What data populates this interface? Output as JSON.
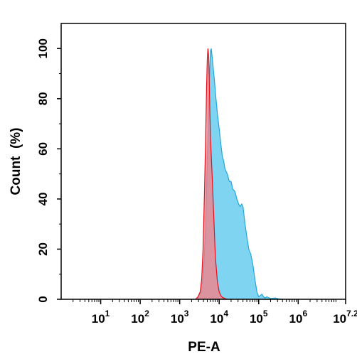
{
  "chart_data": {
    "type": "area",
    "xlabel": "PE-A",
    "ylabel": "Count  (%)",
    "x_scale": "log",
    "xlim": [
      1,
      15848932
    ],
    "ylim": [
      0,
      110
    ],
    "x_ticks": [
      {
        "base": "10",
        "exp": "1",
        "value": 10
      },
      {
        "base": "10",
        "exp": "2",
        "value": 100
      },
      {
        "base": "10",
        "exp": "3",
        "value": 1000
      },
      {
        "base": "10",
        "exp": "4",
        "value": 10000
      },
      {
        "base": "10",
        "exp": "5",
        "value": 100000
      },
      {
        "base": "10",
        "exp": "6",
        "value": 1000000
      },
      {
        "base": "10",
        "exp": "7.2",
        "value": 15848932
      }
    ],
    "y_ticks": [
      0,
      20,
      40,
      60,
      80,
      100
    ],
    "grid": false,
    "legend": "none",
    "series": [
      {
        "color_fill": "#7fd4f2",
        "color_line": "#22a7dc",
        "x": [
          2600,
          3000,
          3500,
          4000,
          4500,
          5000,
          5500,
          6000,
          6300,
          6600,
          7000,
          7600,
          8300,
          9000,
          10000,
          11000,
          12000,
          13000,
          14000,
          16000,
          18000,
          20000,
          22000,
          25000,
          28000,
          31000,
          34000,
          37000,
          40000,
          45000,
          50000,
          56000,
          63000,
          71000,
          80000,
          90000,
          100000,
          120000,
          140000,
          160000,
          200000,
          260000,
          320000,
          400000
        ],
        "y": [
          0,
          1,
          3,
          10,
          28,
          55,
          82,
          99,
          100,
          97,
          93,
          87,
          80,
          74,
          68,
          62,
          57,
          55,
          52,
          50,
          47,
          47,
          44,
          43,
          40,
          38,
          37,
          38,
          37,
          30,
          25,
          20,
          18,
          14,
          8,
          3,
          1,
          2,
          0.5,
          1,
          0.3,
          0.5,
          0.2,
          0
        ]
      },
      {
        "color_fill": "#ff7a80",
        "color_line": "#e8101c",
        "x": [
          2500,
          2900,
          3300,
          3600,
          3900,
          4200,
          4500,
          4800,
          5000,
          5200,
          5400,
          5600,
          5800,
          6000,
          6300,
          6600,
          7000,
          7500,
          8000,
          9000,
          10000,
          11000,
          12000,
          14000,
          16000
        ],
        "y": [
          0,
          1,
          3,
          8,
          20,
          40,
          62,
          85,
          96,
          100,
          97,
          88,
          75,
          65,
          57,
          50,
          40,
          28,
          17,
          7,
          3,
          1.5,
          0.8,
          0.3,
          0
        ]
      }
    ]
  }
}
